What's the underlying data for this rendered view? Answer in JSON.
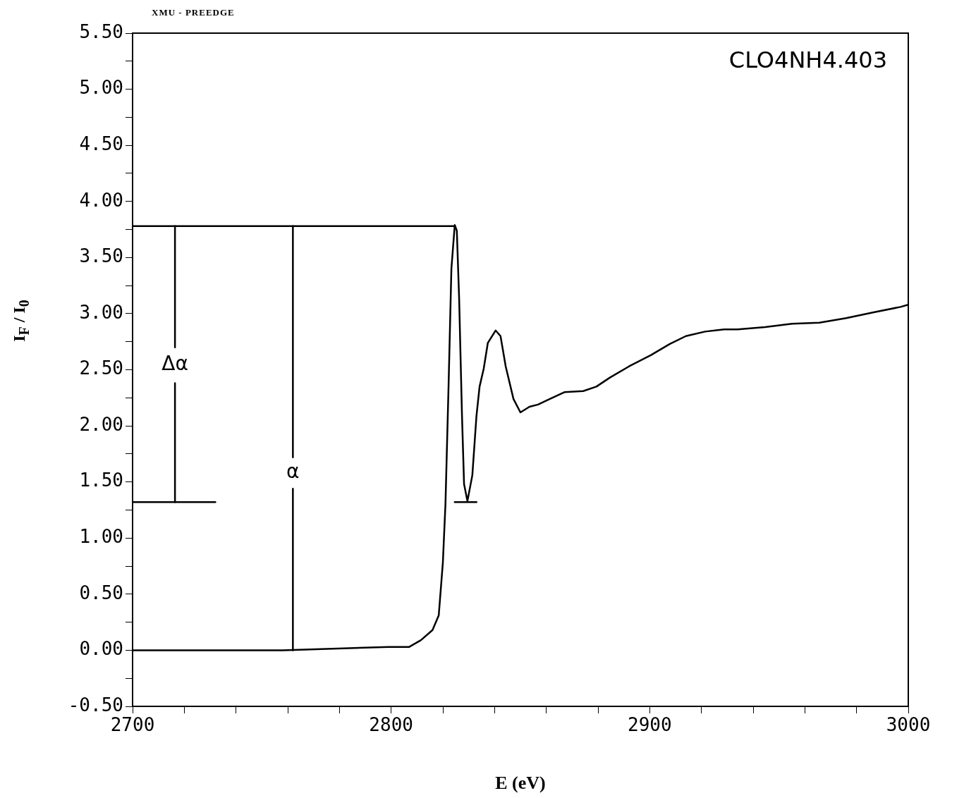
{
  "chart_data": {
    "type": "line",
    "title": "XMU - PREEDGE",
    "xlabel": "E (eV)",
    "ylabel": "I$_{F}$ / I$_{0}$",
    "xlim": [
      2700,
      3000
    ],
    "xticks": [
      2700,
      {
        "value": 2720,
        "label": null
      },
      {
        "value": 2740,
        "label": null
      },
      {
        "value": 2760,
        "label": null
      },
      {
        "value": 2780,
        "label": null
      },
      2800,
      {
        "value": 2820,
        "label": null
      },
      {
        "value": 2840,
        "label": null
      },
      {
        "value": 2860,
        "label": null
      },
      {
        "value": 2880,
        "label": null
      },
      2900,
      {
        "value": 2920,
        "label": null
      },
      {
        "value": 2940,
        "label": null
      },
      {
        "value": 2960,
        "label": null
      },
      {
        "value": 2980,
        "label": null
      },
      3000
    ],
    "ylim": [
      -0.5,
      5.5
    ],
    "yticks": [
      {
        "value": -0.5,
        "label": "-0.50"
      },
      {
        "value": -0.25,
        "label": null
      },
      {
        "value": 0,
        "label": "0.00"
      },
      {
        "value": 0.25,
        "label": null
      },
      {
        "value": 0.5,
        "label": "0.50"
      },
      {
        "value": 0.75,
        "label": null
      },
      {
        "value": 1,
        "label": "1.00"
      },
      {
        "value": 1.25,
        "label": null
      },
      {
        "value": 1.5,
        "label": "1.50"
      },
      {
        "value": 1.75,
        "label": null
      },
      {
        "value": 2,
        "label": "2.00"
      },
      {
        "value": 2.25,
        "label": null
      },
      {
        "value": 2.5,
        "label": "2.50"
      },
      {
        "value": 2.75,
        "label": null
      },
      {
        "value": 3,
        "label": "3.00"
      },
      {
        "value": 3.25,
        "label": null
      },
      {
        "value": 3.5,
        "label": "3.50"
      },
      {
        "value": 3.75,
        "label": null
      },
      {
        "value": 4,
        "label": "4.00"
      },
      {
        "value": 4.25,
        "label": null
      },
      {
        "value": 4.5,
        "label": "4.50"
      },
      {
        "value": 4.75,
        "label": null
      },
      {
        "value": 5,
        "label": "5.00"
      },
      {
        "value": 5.25,
        "label": null
      },
      {
        "value": 5.5,
        "label": "5.50"
      }
    ],
    "grid": false,
    "legend": false,
    "marker": "none",
    "line_style": "solid",
    "series": [
      {
        "color": "#000000",
        "x": [
          2700,
          2758,
          2799,
          2807,
          2811.5,
          2816,
          2818.4,
          2820,
          2821,
          2822.2,
          2823.3,
          2824.6,
          2825.4,
          2826.3,
          2827.4,
          2828.2,
          2829.5,
          2831.4,
          2833,
          2834.2,
          2835.8,
          2837.4,
          2840.4,
          2842.3,
          2844.3,
          2847.3,
          2850,
          2853.5,
          2856.8,
          2861.4,
          2867,
          2874.3,
          2879.4,
          2884.6,
          2892,
          2900.4,
          2907.8,
          2914,
          2921.4,
          2928.8,
          2934,
          2944.6,
          2955,
          2965.6,
          2976,
          2986.3,
          2997,
          3000
        ],
        "values": [
          0,
          0,
          0.03,
          0.03,
          0.09,
          0.18,
          0.31,
          0.78,
          1.3,
          2.35,
          3.4,
          3.79,
          3.74,
          3.13,
          2.09,
          1.48,
          1.33,
          1.56,
          2.09,
          2.35,
          2.51,
          2.74,
          2.85,
          2.8,
          2.53,
          2.24,
          2.12,
          2.17,
          2.19,
          2.24,
          2.3,
          2.31,
          2.35,
          2.43,
          2.53,
          2.63,
          2.73,
          2.8,
          2.84,
          2.86,
          2.86,
          2.88,
          2.91,
          2.92,
          2.96,
          3.01,
          3.06,
          3.08
        ]
      },
      {
        "color": "#000000",
        "x": [
          2700,
          2824.6
        ],
        "values": [
          3.78,
          3.78
        ]
      },
      {
        "color": "#000000",
        "x": [
          2716.4,
          2716.4
        ],
        "values": [
          3.78,
          2.7
        ]
      },
      {
        "color": "#000000",
        "x": [
          2716.4,
          2716.4
        ],
        "values": [
          2.38,
          1.32
        ]
      },
      {
        "color": "#000000",
        "x": [
          2700,
          2732
        ],
        "values": [
          1.32,
          1.32
        ]
      },
      {
        "color": "#000000",
        "x": [
          2762,
          2762
        ],
        "values": [
          3.78,
          1.72
        ]
      },
      {
        "color": "#000000",
        "x": [
          2762,
          2762
        ],
        "values": [
          1.44,
          0
        ]
      },
      {
        "color": "#000000",
        "x": [
          2824.6,
          2833
        ],
        "values": [
          1.32,
          1.32
        ]
      }
    ],
    "annotations": [
      "CLO4NH4.403",
      "Δα",
      "α"
    ]
  }
}
